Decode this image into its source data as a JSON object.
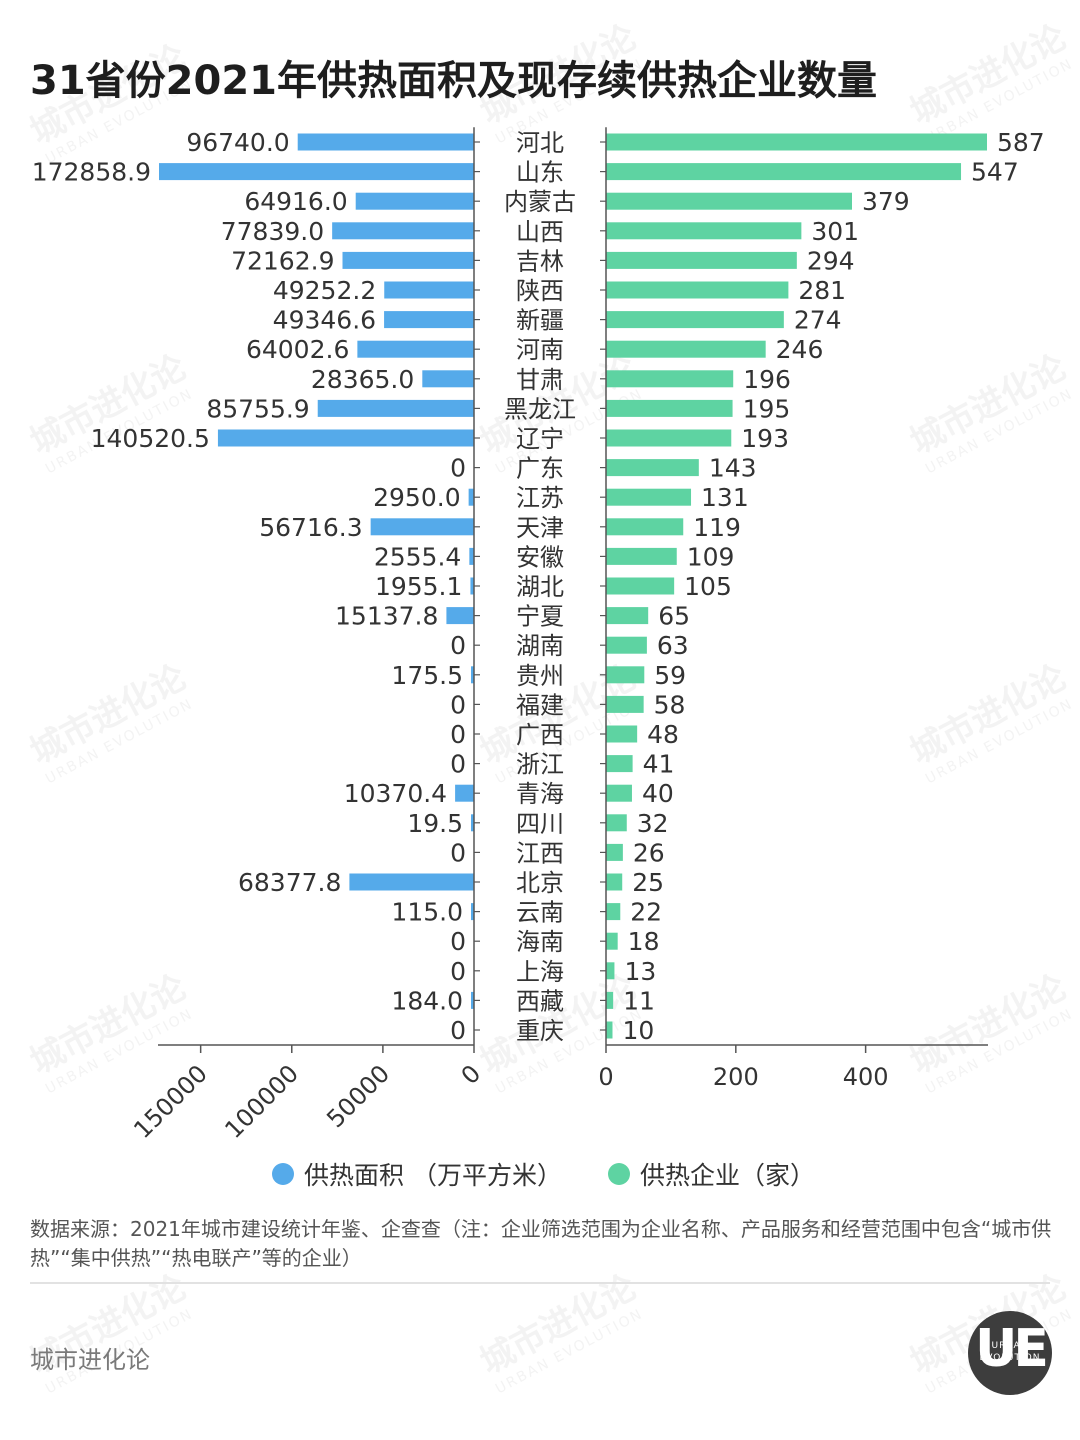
{
  "title": "31省份2021年供热面积及现存续供热企业数量",
  "chart_data": {
    "type": "bar",
    "categories": [
      "河北",
      "山东",
      "内蒙古",
      "山西",
      "吉林",
      "陕西",
      "新疆",
      "河南",
      "甘肃",
      "黑龙江",
      "辽宁",
      "广东",
      "江苏",
      "天津",
      "安徽",
      "湖北",
      "宁夏",
      "湖南",
      "贵州",
      "福建",
      "广西",
      "浙江",
      "青海",
      "四川",
      "江西",
      "北京",
      "云南",
      "海南",
      "上海",
      "西藏",
      "重庆"
    ],
    "series": [
      {
        "name": "供热面积 （万平方米）",
        "color": "#55aaea",
        "direction": "left",
        "values": [
          96740.0,
          172858.9,
          64916.0,
          77839.0,
          72162.9,
          49252.2,
          49346.6,
          64002.6,
          28365.0,
          85755.9,
          140520.5,
          0,
          2950.0,
          56716.3,
          2555.4,
          1955.1,
          15137.8,
          0,
          175.5,
          0,
          0,
          0,
          10370.4,
          19.5,
          0,
          68377.8,
          115.0,
          0,
          0,
          184.0,
          0
        ],
        "labels": [
          "96740.0",
          "172858.9",
          "64916.0",
          "77839.0",
          "72162.9",
          "49252.2",
          "49346.6",
          "64002.6",
          "28365.0",
          "85755.9",
          "140520.5",
          "0",
          "2950.0",
          "56716.3",
          "2555.4",
          "1955.1",
          "15137.8",
          "0",
          "175.5",
          "0",
          "0",
          "0",
          "10370.4",
          "19.5",
          "0",
          "68377.8",
          "115.0",
          "0",
          "0",
          "184.0",
          "0"
        ]
      },
      {
        "name": "供热企业（家）",
        "color": "#5ed3a2",
        "direction": "right",
        "values": [
          587,
          547,
          379,
          301,
          294,
          281,
          274,
          246,
          196,
          195,
          193,
          143,
          131,
          119,
          109,
          105,
          65,
          63,
          59,
          58,
          48,
          41,
          40,
          32,
          26,
          25,
          22,
          18,
          13,
          11,
          10
        ],
        "labels": [
          "587",
          "547",
          "379",
          "301",
          "294",
          "281",
          "274",
          "246",
          "196",
          "195",
          "193",
          "143",
          "131",
          "119",
          "109",
          "105",
          "65",
          "63",
          "59",
          "58",
          "48",
          "41",
          "40",
          "32",
          "26",
          "25",
          "22",
          "18",
          "13",
          "11",
          "10"
        ]
      }
    ],
    "left_axis": {
      "ticks": [
        150000,
        100000,
        50000,
        0
      ],
      "tick_labels": [
        "150000",
        "100000",
        "50000",
        "0"
      ],
      "range": [
        0,
        175000
      ],
      "reversed": true
    },
    "right_axis": {
      "ticks": [
        0,
        200,
        400
      ],
      "tick_labels": [
        "0",
        "200",
        "400"
      ],
      "range": [
        0,
        587
      ]
    },
    "legend_position": "bottom-center",
    "grid": false
  },
  "source_note": "数据来源：2021年城市建设统计年鉴、企查查（注：企业筛选范围为企业名称、产品服务和经营范围中包含“城市供热”“集中供热”“热电联产”等的企业）",
  "brand": "城市进化论",
  "logo": {
    "letters": "UE",
    "word_top": "URBAN",
    "word_bottom": "EVOLUTION"
  },
  "watermark": {
    "cn": "城市进化论",
    "en": "URBAN EVOLUTION"
  }
}
